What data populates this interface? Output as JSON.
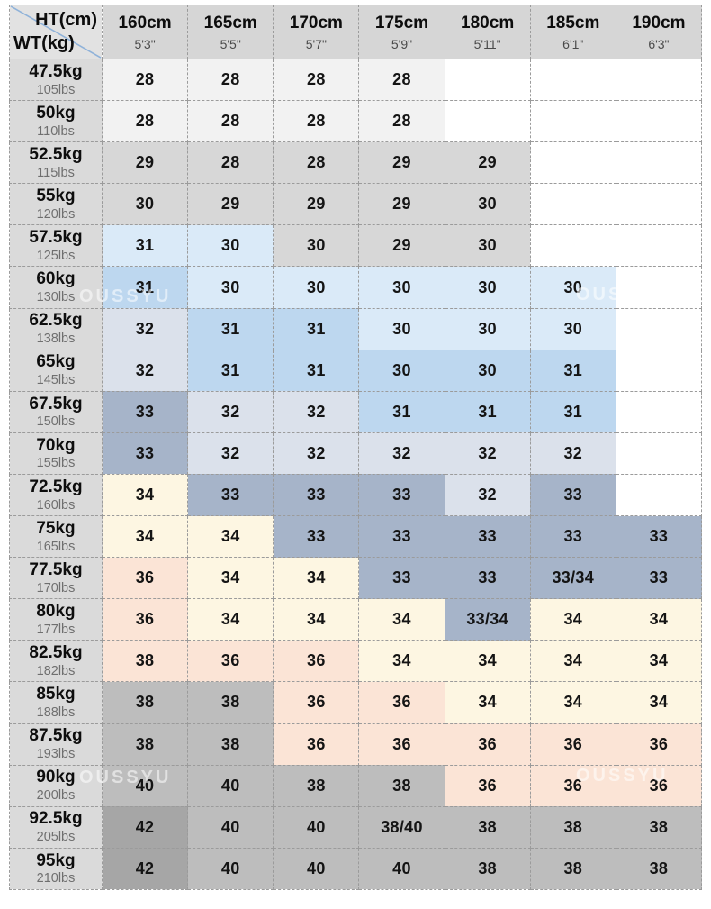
{
  "watermark": "OUSSYU",
  "colors": {
    "blank": "#ffffff",
    "faint": "#f2f2f2",
    "gray": "#d7d7d7",
    "lightblue": "#daeaf8",
    "blue": "#bdd7ef",
    "steel_light": "#dbe1eb",
    "steel": "#a6b4c9",
    "cream": "#fdf6e2",
    "pink": "#fbe4d6",
    "midgray": "#bdbdbd",
    "darkgray": "#a6a6a6",
    "header_bg": "#d6d6d6",
    "label_bg": "#dadada",
    "corner_bg": "#e2e2e2",
    "border": "#9b9b9b",
    "diagonal": "#8fb2d9",
    "watermark_color": "rgba(255,255,255,0.55)"
  },
  "chart_data": {
    "type": "table",
    "header": {
      "corner_top": "HT(cm)",
      "corner_bottom": "WT(kg)",
      "columns": [
        {
          "cm": "160cm",
          "ft": "5'3\""
        },
        {
          "cm": "165cm",
          "ft": "5'5\""
        },
        {
          "cm": "170cm",
          "ft": "5'7\""
        },
        {
          "cm": "175cm",
          "ft": "5'9\""
        },
        {
          "cm": "180cm",
          "ft": "5'11\""
        },
        {
          "cm": "185cm",
          "ft": "6'1\""
        },
        {
          "cm": "190cm",
          "ft": "6'3\""
        }
      ]
    },
    "rows": [
      {
        "kg": "47.5kg",
        "lbs": "105lbs",
        "cells": [
          {
            "v": "28",
            "bg": "faint"
          },
          {
            "v": "28",
            "bg": "faint"
          },
          {
            "v": "28",
            "bg": "faint"
          },
          {
            "v": "28",
            "bg": "faint"
          },
          {
            "v": "",
            "bg": "blank"
          },
          {
            "v": "",
            "bg": "blank"
          },
          {
            "v": "",
            "bg": "blank"
          }
        ]
      },
      {
        "kg": "50kg",
        "lbs": "110lbs",
        "cells": [
          {
            "v": "28",
            "bg": "faint"
          },
          {
            "v": "28",
            "bg": "faint"
          },
          {
            "v": "28",
            "bg": "faint"
          },
          {
            "v": "28",
            "bg": "faint"
          },
          {
            "v": "",
            "bg": "blank"
          },
          {
            "v": "",
            "bg": "blank"
          },
          {
            "v": "",
            "bg": "blank"
          }
        ]
      },
      {
        "kg": "52.5kg",
        "lbs": "115lbs",
        "cells": [
          {
            "v": "29",
            "bg": "gray"
          },
          {
            "v": "28",
            "bg": "gray"
          },
          {
            "v": "28",
            "bg": "gray"
          },
          {
            "v": "29",
            "bg": "gray"
          },
          {
            "v": "29",
            "bg": "gray"
          },
          {
            "v": "",
            "bg": "blank"
          },
          {
            "v": "",
            "bg": "blank"
          }
        ]
      },
      {
        "kg": "55kg",
        "lbs": "120lbs",
        "cells": [
          {
            "v": "30",
            "bg": "gray"
          },
          {
            "v": "29",
            "bg": "gray"
          },
          {
            "v": "29",
            "bg": "gray"
          },
          {
            "v": "29",
            "bg": "gray"
          },
          {
            "v": "30",
            "bg": "gray"
          },
          {
            "v": "",
            "bg": "blank"
          },
          {
            "v": "",
            "bg": "blank"
          }
        ]
      },
      {
        "kg": "57.5kg",
        "lbs": "125lbs",
        "cells": [
          {
            "v": "31",
            "bg": "lightblue"
          },
          {
            "v": "30",
            "bg": "lightblue"
          },
          {
            "v": "30",
            "bg": "gray"
          },
          {
            "v": "29",
            "bg": "gray"
          },
          {
            "v": "30",
            "bg": "gray"
          },
          {
            "v": "",
            "bg": "blank"
          },
          {
            "v": "",
            "bg": "blank"
          }
        ]
      },
      {
        "kg": "60kg",
        "lbs": "130lbs",
        "cells": [
          {
            "v": "31",
            "bg": "blue"
          },
          {
            "v": "30",
            "bg": "lightblue"
          },
          {
            "v": "30",
            "bg": "lightblue"
          },
          {
            "v": "30",
            "bg": "lightblue"
          },
          {
            "v": "30",
            "bg": "lightblue"
          },
          {
            "v": "30",
            "bg": "lightblue"
          },
          {
            "v": "",
            "bg": "blank"
          }
        ]
      },
      {
        "kg": "62.5kg",
        "lbs": "138lbs",
        "cells": [
          {
            "v": "32",
            "bg": "steel_light"
          },
          {
            "v": "31",
            "bg": "blue"
          },
          {
            "v": "31",
            "bg": "blue"
          },
          {
            "v": "30",
            "bg": "lightblue"
          },
          {
            "v": "30",
            "bg": "lightblue"
          },
          {
            "v": "30",
            "bg": "lightblue"
          },
          {
            "v": "",
            "bg": "blank"
          }
        ]
      },
      {
        "kg": "65kg",
        "lbs": "145lbs",
        "cells": [
          {
            "v": "32",
            "bg": "steel_light"
          },
          {
            "v": "31",
            "bg": "blue"
          },
          {
            "v": "31",
            "bg": "blue"
          },
          {
            "v": "30",
            "bg": "blue"
          },
          {
            "v": "30",
            "bg": "blue"
          },
          {
            "v": "31",
            "bg": "blue"
          },
          {
            "v": "",
            "bg": "blank"
          }
        ]
      },
      {
        "kg": "67.5kg",
        "lbs": "150lbs",
        "cells": [
          {
            "v": "33",
            "bg": "steel"
          },
          {
            "v": "32",
            "bg": "steel_light"
          },
          {
            "v": "32",
            "bg": "steel_light"
          },
          {
            "v": "31",
            "bg": "blue"
          },
          {
            "v": "31",
            "bg": "blue"
          },
          {
            "v": "31",
            "bg": "blue"
          },
          {
            "v": "",
            "bg": "blank"
          }
        ]
      },
      {
        "kg": "70kg",
        "lbs": "155lbs",
        "cells": [
          {
            "v": "33",
            "bg": "steel"
          },
          {
            "v": "32",
            "bg": "steel_light"
          },
          {
            "v": "32",
            "bg": "steel_light"
          },
          {
            "v": "32",
            "bg": "steel_light"
          },
          {
            "v": "32",
            "bg": "steel_light"
          },
          {
            "v": "32",
            "bg": "steel_light"
          },
          {
            "v": "",
            "bg": "blank"
          }
        ]
      },
      {
        "kg": "72.5kg",
        "lbs": "160lbs",
        "cells": [
          {
            "v": "34",
            "bg": "cream"
          },
          {
            "v": "33",
            "bg": "steel"
          },
          {
            "v": "33",
            "bg": "steel"
          },
          {
            "v": "33",
            "bg": "steel"
          },
          {
            "v": "32",
            "bg": "steel_light"
          },
          {
            "v": "33",
            "bg": "steel"
          },
          {
            "v": "",
            "bg": "blank"
          }
        ]
      },
      {
        "kg": "75kg",
        "lbs": "165lbs",
        "cells": [
          {
            "v": "34",
            "bg": "cream"
          },
          {
            "v": "34",
            "bg": "cream"
          },
          {
            "v": "33",
            "bg": "steel"
          },
          {
            "v": "33",
            "bg": "steel"
          },
          {
            "v": "33",
            "bg": "steel"
          },
          {
            "v": "33",
            "bg": "steel"
          },
          {
            "v": "33",
            "bg": "steel"
          }
        ]
      },
      {
        "kg": "77.5kg",
        "lbs": "170lbs",
        "cells": [
          {
            "v": "36",
            "bg": "pink"
          },
          {
            "v": "34",
            "bg": "cream"
          },
          {
            "v": "34",
            "bg": "cream"
          },
          {
            "v": "33",
            "bg": "steel"
          },
          {
            "v": "33",
            "bg": "steel"
          },
          {
            "v": "33/34",
            "bg": "steel"
          },
          {
            "v": "33",
            "bg": "steel"
          }
        ]
      },
      {
        "kg": "80kg",
        "lbs": "177lbs",
        "cells": [
          {
            "v": "36",
            "bg": "pink"
          },
          {
            "v": "34",
            "bg": "cream"
          },
          {
            "v": "34",
            "bg": "cream"
          },
          {
            "v": "34",
            "bg": "cream"
          },
          {
            "v": "33/34",
            "bg": "steel"
          },
          {
            "v": "34",
            "bg": "cream"
          },
          {
            "v": "34",
            "bg": "cream"
          }
        ]
      },
      {
        "kg": "82.5kg",
        "lbs": "182lbs",
        "cells": [
          {
            "v": "38",
            "bg": "pink"
          },
          {
            "v": "36",
            "bg": "pink"
          },
          {
            "v": "36",
            "bg": "pink"
          },
          {
            "v": "34",
            "bg": "cream"
          },
          {
            "v": "34",
            "bg": "cream"
          },
          {
            "v": "34",
            "bg": "cream"
          },
          {
            "v": "34",
            "bg": "cream"
          }
        ]
      },
      {
        "kg": "85kg",
        "lbs": "188lbs",
        "cells": [
          {
            "v": "38",
            "bg": "midgray"
          },
          {
            "v": "38",
            "bg": "midgray"
          },
          {
            "v": "36",
            "bg": "pink"
          },
          {
            "v": "36",
            "bg": "pink"
          },
          {
            "v": "34",
            "bg": "cream"
          },
          {
            "v": "34",
            "bg": "cream"
          },
          {
            "v": "34",
            "bg": "cream"
          }
        ]
      },
      {
        "kg": "87.5kg",
        "lbs": "193lbs",
        "cells": [
          {
            "v": "38",
            "bg": "midgray"
          },
          {
            "v": "38",
            "bg": "midgray"
          },
          {
            "v": "36",
            "bg": "pink"
          },
          {
            "v": "36",
            "bg": "pink"
          },
          {
            "v": "36",
            "bg": "pink"
          },
          {
            "v": "36",
            "bg": "pink"
          },
          {
            "v": "36",
            "bg": "pink"
          }
        ]
      },
      {
        "kg": "90kg",
        "lbs": "200lbs",
        "cells": [
          {
            "v": "40",
            "bg": "midgray"
          },
          {
            "v": "40",
            "bg": "midgray"
          },
          {
            "v": "38",
            "bg": "midgray"
          },
          {
            "v": "38",
            "bg": "midgray"
          },
          {
            "v": "36",
            "bg": "pink"
          },
          {
            "v": "36",
            "bg": "pink"
          },
          {
            "v": "36",
            "bg": "pink"
          }
        ]
      },
      {
        "kg": "92.5kg",
        "lbs": "205lbs",
        "cells": [
          {
            "v": "42",
            "bg": "darkgray"
          },
          {
            "v": "40",
            "bg": "midgray"
          },
          {
            "v": "40",
            "bg": "midgray"
          },
          {
            "v": "38/40",
            "bg": "midgray"
          },
          {
            "v": "38",
            "bg": "midgray"
          },
          {
            "v": "38",
            "bg": "midgray"
          },
          {
            "v": "38",
            "bg": "midgray"
          }
        ]
      },
      {
        "kg": "95kg",
        "lbs": "210lbs",
        "cells": [
          {
            "v": "42",
            "bg": "darkgray"
          },
          {
            "v": "40",
            "bg": "midgray"
          },
          {
            "v": "40",
            "bg": "midgray"
          },
          {
            "v": "40",
            "bg": "midgray"
          },
          {
            "v": "38",
            "bg": "midgray"
          },
          {
            "v": "38",
            "bg": "midgray"
          },
          {
            "v": "38",
            "bg": "midgray"
          }
        ]
      }
    ]
  }
}
